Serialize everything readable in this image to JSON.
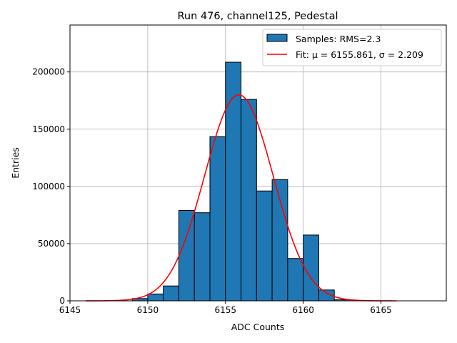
{
  "chart_data": {
    "type": "bar",
    "title": "Run 476, channel125, Pedestal",
    "xlabel": "ADC Counts",
    "ylabel": "Entries",
    "xlim": [
      6145,
      6169.2
    ],
    "ylim": [
      0,
      241000
    ],
    "grid": true,
    "legend_position": "top-right",
    "x_ticks": [
      6145,
      6150,
      6155,
      6160,
      6165
    ],
    "y_ticks": [
      0,
      50000,
      100000,
      150000,
      200000
    ],
    "bin_edges": [
      6149,
      6150,
      6151,
      6152,
      6153,
      6154,
      6155,
      6156,
      6157,
      6158,
      6159,
      6160,
      6161,
      6162,
      6163
    ],
    "values": [
      2000,
      6000,
      13000,
      79000,
      77000,
      143500,
      208500,
      176000,
      96000,
      106000,
      37000,
      57500,
      9500,
      1000
    ],
    "series": [
      {
        "name": "Samples: RMS=2.3",
        "kind": "histogram",
        "color": "#1f77b4"
      },
      {
        "name": "Fit: μ = 6155.861, σ = 2.209",
        "kind": "gaussian",
        "color": "#ff0000",
        "mu": 6155.861,
        "sigma": 2.209,
        "amplitude": 180000,
        "x_range": [
          6146,
          6166
        ]
      }
    ]
  }
}
